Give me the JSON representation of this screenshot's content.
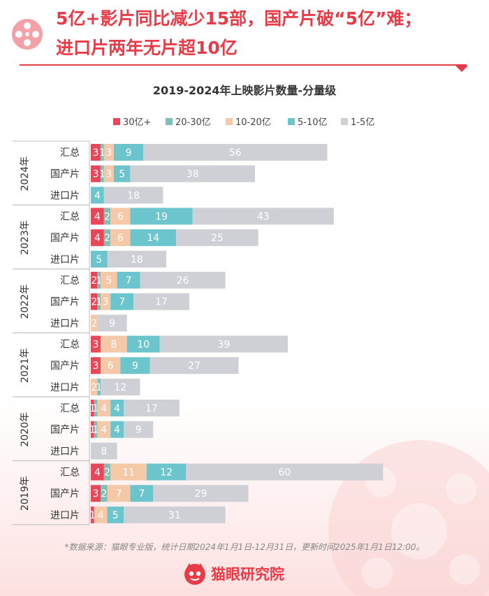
{
  "header": {
    "line1": "5亿+影片同比减少15部，国产片破“5亿”难；",
    "line2": "进口片两年无片超10亿"
  },
  "footer": {
    "source": "*数据来源：猫眼专业版，统计日期2024年1月1日-12月31日，更新时间2025年1月1日12:00。",
    "brand": "猫眼研究院"
  },
  "colors": {
    "accent": "#e83b48",
    "s1": "#e8475a",
    "s2": "#7fbfb8",
    "s3": "#f5c8a8",
    "s4": "#6cc5cc",
    "s5": "#cfcfd6"
  },
  "chart_data": {
    "type": "bar",
    "orientation": "horizontal",
    "stacked": true,
    "title": "2019-2024年上映影片数量-分量级",
    "legend_position": "top",
    "series_names": [
      "30亿+",
      "20-30亿",
      "10-20亿",
      "5-10亿",
      "1-5亿"
    ],
    "groups": [
      {
        "year": "2024年",
        "rows": [
          {
            "label": "汇总",
            "values": [
              3,
              1,
              3,
              9,
              56
            ]
          },
          {
            "label": "国产片",
            "values": [
              3,
              1,
              3,
              5,
              38
            ]
          },
          {
            "label": "进口片",
            "values": [
              0,
              0,
              0,
              4,
              18
            ]
          }
        ]
      },
      {
        "year": "2023年",
        "rows": [
          {
            "label": "汇总",
            "values": [
              4,
              2,
              6,
              19,
              43
            ]
          },
          {
            "label": "国产片",
            "values": [
              4,
              2,
              6,
              14,
              25
            ]
          },
          {
            "label": "进口片",
            "values": [
              0,
              0,
              0,
              5,
              18
            ]
          }
        ]
      },
      {
        "year": "2022年",
        "rows": [
          {
            "label": "汇总",
            "values": [
              2,
              1,
              5,
              7,
              26
            ]
          },
          {
            "label": "国产片",
            "values": [
              2,
              1,
              3,
              7,
              17
            ]
          },
          {
            "label": "进口片",
            "values": [
              0,
              0,
              2,
              0,
              9
            ]
          }
        ]
      },
      {
        "year": "2021年",
        "rows": [
          {
            "label": "汇总",
            "values": [
              3,
              0,
              8,
              10,
              39
            ]
          },
          {
            "label": "国产片",
            "values": [
              3,
              0,
              6,
              9,
              27
            ]
          },
          {
            "label": "进口片",
            "values": [
              0,
              0,
              2,
              1,
              12
            ]
          }
        ]
      },
      {
        "year": "2020年",
        "rows": [
          {
            "label": "汇总",
            "values": [
              1,
              1,
              4,
              4,
              17
            ]
          },
          {
            "label": "国产片",
            "values": [
              1,
              1,
              4,
              4,
              9
            ]
          },
          {
            "label": "进口片",
            "values": [
              0,
              0,
              0,
              0,
              8
            ]
          }
        ]
      },
      {
        "year": "2019年",
        "rows": [
          {
            "label": "汇总",
            "values": [
              4,
              2,
              11,
              12,
              60
            ]
          },
          {
            "label": "国产片",
            "values": [
              3,
              2,
              7,
              7,
              29
            ]
          },
          {
            "label": "进口片",
            "values": [
              1,
              0,
              4,
              5,
              31
            ]
          }
        ]
      }
    ]
  }
}
